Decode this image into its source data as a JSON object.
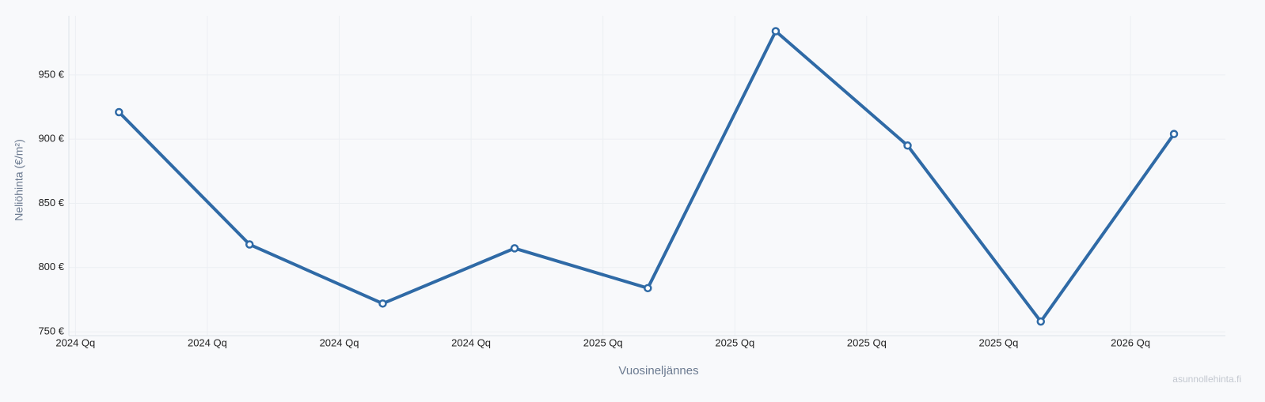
{
  "chart_data": {
    "type": "line",
    "x_label": "Vuosineljännes",
    "y_label": "Neliöhinta (€/m²)",
    "watermark": "asunnollehinta.fi",
    "x": [
      0.33,
      1.32,
      2.33,
      3.33,
      4.34,
      5.31,
      6.31,
      7.32,
      8.33
    ],
    "series": [
      {
        "color": "#2f6aa6",
        "values": [
          921,
          818,
          772,
          815,
          784,
          984,
          895,
          758,
          904
        ]
      }
    ],
    "xlim": [
      -0.05,
      8.72
    ],
    "xticks": [
      {
        "value": 0,
        "label": "2024 Qq"
      },
      {
        "value": 1,
        "label": "2024 Qq"
      },
      {
        "value": 2,
        "label": "2024 Qq"
      },
      {
        "value": 3,
        "label": "2024 Qq"
      },
      {
        "value": 4,
        "label": "2025 Qq"
      },
      {
        "value": 5,
        "label": "2025 Qq"
      },
      {
        "value": 6,
        "label": "2025 Qq"
      },
      {
        "value": 7,
        "label": "2025 Qq"
      },
      {
        "value": 8,
        "label": "2026 Qq"
      }
    ],
    "ylim": [
      747,
      996
    ],
    "yticks": [
      {
        "value": 750,
        "label": "750 €"
      },
      {
        "value": 800,
        "label": "800 €"
      },
      {
        "value": 850,
        "label": "850 €"
      },
      {
        "value": 900,
        "label": "900 €"
      },
      {
        "value": 950,
        "label": "950 €"
      }
    ],
    "grid": true
  }
}
